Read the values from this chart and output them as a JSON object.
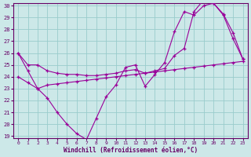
{
  "x": [
    0,
    1,
    2,
    3,
    4,
    5,
    6,
    7,
    8,
    9,
    10,
    11,
    12,
    13,
    14,
    15,
    16,
    17,
    18,
    19,
    20,
    21,
    22,
    23
  ],
  "line1": [
    26.0,
    24.5,
    23.0,
    22.2,
    21.0,
    20.0,
    19.2,
    18.7,
    20.5,
    22.3,
    23.3,
    24.8,
    25.0,
    23.2,
    24.2,
    25.2,
    27.8,
    29.5,
    29.2,
    30.0,
    30.2,
    29.2,
    27.2,
    25.5
  ],
  "line2": [
    26.0,
    25.0,
    25.0,
    24.5,
    24.3,
    24.2,
    24.2,
    24.1,
    24.1,
    24.2,
    24.3,
    24.5,
    24.6,
    24.3,
    24.5,
    24.7,
    25.8,
    26.4,
    29.5,
    30.5,
    30.2,
    29.3,
    27.7,
    25.5
  ],
  "line3": [
    24.0,
    23.5,
    23.0,
    23.3,
    23.4,
    23.5,
    23.6,
    23.7,
    23.8,
    23.9,
    24.0,
    24.1,
    24.2,
    24.3,
    24.4,
    24.5,
    24.6,
    24.7,
    24.8,
    24.9,
    25.0,
    25.1,
    25.2,
    25.3
  ],
  "color": "#990099",
  "bg_color": "#cce8e8",
  "grid_color": "#99cccc",
  "xlabel": "Windchill (Refroidissement éolien,°C)",
  "ylim": [
    19,
    30
  ],
  "xlim": [
    -0.5,
    23.5
  ],
  "yticks": [
    19,
    20,
    21,
    22,
    23,
    24,
    25,
    26,
    27,
    28,
    29,
    30
  ],
  "xticks": [
    0,
    1,
    2,
    3,
    4,
    5,
    6,
    7,
    8,
    9,
    10,
    11,
    12,
    13,
    14,
    15,
    16,
    17,
    18,
    19,
    20,
    21,
    22,
    23
  ],
  "font_color": "#660066",
  "marker": "+"
}
